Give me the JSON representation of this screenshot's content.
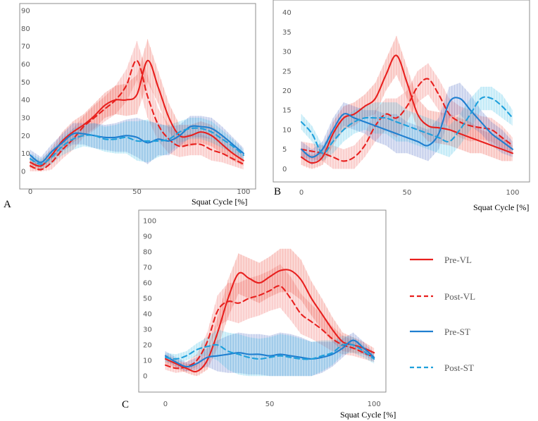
{
  "figure": {
    "x_label": "Squat Cycle [%]",
    "legend": [
      {
        "label": "Pre-VL",
        "color": "#e8201e",
        "dashed": false
      },
      {
        "label": "Post-VL",
        "color": "#e8201e",
        "dashed": true
      },
      {
        "label": "Pre-ST",
        "color": "#1f7fd0",
        "dashed": false
      },
      {
        "label": "Post-ST",
        "color": "#1fa0dc",
        "dashed": true
      }
    ]
  },
  "chart_data": [
    {
      "type": "line",
      "panel": "A",
      "title": "",
      "xlabel": "Squat Cycle [%]",
      "ylabel": "",
      "xlim": [
        -1,
        104
      ],
      "ylim": [
        -2,
        90
      ],
      "x_ticks": [
        0,
        50,
        100
      ],
      "y_ticks": [
        0,
        10,
        20,
        30,
        40,
        50,
        60,
        70,
        80,
        90
      ],
      "x": [
        0,
        5,
        10,
        15,
        20,
        25,
        30,
        35,
        40,
        45,
        50,
        55,
        60,
        65,
        70,
        75,
        80,
        85,
        90,
        95,
        100
      ],
      "series": [
        {
          "name": "Pre-VL",
          "values": [
            5,
            3,
            9,
            17,
            22,
            26,
            31,
            37,
            40,
            40,
            43,
            62,
            47,
            30,
            20,
            20,
            22,
            20,
            15,
            10,
            6
          ]
        },
        {
          "name": "Post-VL",
          "values": [
            3,
            1,
            5,
            12,
            18,
            25,
            30,
            35,
            40,
            48,
            62,
            42,
            26,
            18,
            14,
            15,
            15,
            12,
            10,
            7,
            4
          ]
        },
        {
          "name": "Pre-ST",
          "values": [
            9,
            5,
            11,
            16,
            21,
            21,
            20,
            19,
            19,
            20,
            19,
            16,
            18,
            17,
            20,
            25,
            25,
            24,
            20,
            15,
            10
          ]
        },
        {
          "name": "Post-ST",
          "values": [
            7,
            4,
            8,
            14,
            18,
            20,
            20,
            18,
            18,
            19,
            17,
            17,
            17,
            18,
            22,
            24,
            24,
            22,
            18,
            14,
            9
          ]
        }
      ],
      "spread": [
        3,
        3,
        4,
        5,
        6,
        6,
        7,
        7,
        8,
        9,
        11,
        12,
        9,
        8,
        6,
        6,
        6,
        6,
        5,
        4,
        3
      ]
    },
    {
      "type": "line",
      "panel": "B",
      "title": "",
      "xlabel": "Squat Cycle [%]",
      "ylabel": "",
      "xlim": [
        -1,
        104
      ],
      "ylim": [
        -1,
        41
      ],
      "x_ticks": [
        0,
        50,
        100
      ],
      "y_ticks": [
        0,
        5,
        10,
        15,
        20,
        25,
        30,
        35,
        40
      ],
      "x": [
        0,
        5,
        10,
        15,
        20,
        25,
        30,
        35,
        40,
        45,
        50,
        55,
        60,
        65,
        70,
        75,
        80,
        85,
        90,
        95,
        100
      ],
      "series": [
        {
          "name": "Pre-VL",
          "values": [
            3,
            1.5,
            3,
            9,
            13,
            14,
            16,
            18,
            24,
            29,
            22,
            14,
            11,
            10.5,
            10,
            9,
            8,
            7,
            6,
            5,
            4
          ]
        },
        {
          "name": "Post-VL",
          "values": [
            5,
            4.5,
            4,
            3,
            2,
            3,
            6,
            11,
            14,
            13,
            16,
            21,
            23,
            19,
            14,
            12,
            11,
            10.5,
            10,
            8,
            6
          ]
        },
        {
          "name": "Pre-ST",
          "values": [
            5,
            3,
            5,
            10,
            14,
            13,
            12,
            11,
            10,
            9,
            8,
            7,
            6,
            9,
            17,
            18,
            15,
            12,
            9,
            7,
            5
          ]
        },
        {
          "name": "Post-ST",
          "values": [
            12,
            9,
            4,
            7,
            10,
            12,
            13,
            13,
            13,
            12,
            11,
            10,
            9,
            8,
            7,
            10,
            14,
            18,
            18,
            16,
            13
          ]
        }
      ],
      "spread": [
        2,
        2,
        2,
        3,
        3,
        3,
        3,
        4,
        4,
        5,
        4,
        4,
        4,
        4,
        4,
        4,
        4,
        3,
        3,
        3,
        2
      ]
    },
    {
      "type": "line",
      "panel": "C",
      "title": "",
      "xlabel": "Squat Cycle [%]",
      "ylabel": "",
      "xlim": [
        -1,
        104
      ],
      "ylim": [
        -4,
        101
      ],
      "x_ticks": [
        0,
        50,
        100
      ],
      "y_ticks": [
        0,
        10,
        20,
        30,
        40,
        50,
        60,
        70,
        80,
        90,
        100
      ],
      "x": [
        0,
        5,
        10,
        15,
        20,
        25,
        30,
        35,
        40,
        45,
        50,
        55,
        60,
        65,
        70,
        75,
        80,
        85,
        90,
        95,
        100
      ],
      "series": [
        {
          "name": "Pre-VL",
          "values": [
            11,
            8,
            5,
            3,
            10,
            28,
            50,
            66,
            63,
            60,
            64,
            68,
            68,
            62,
            50,
            40,
            30,
            22,
            20,
            18,
            15
          ]
        },
        {
          "name": "Post-VL",
          "values": [
            7,
            5,
            6,
            10,
            22,
            42,
            48,
            47,
            50,
            52,
            55,
            58,
            50,
            40,
            35,
            30,
            24,
            20,
            18,
            15,
            12
          ]
        },
        {
          "name": "Pre-ST",
          "values": [
            13,
            9,
            6,
            8,
            12,
            13,
            14,
            15,
            14,
            14,
            13,
            14,
            13,
            12,
            11,
            12,
            14,
            18,
            23,
            18,
            12
          ]
        },
        {
          "name": "Post-ST",
          "values": [
            12,
            11,
            13,
            17,
            19,
            20,
            16,
            14,
            12,
            11,
            12,
            13,
            12,
            11,
            11,
            13,
            15,
            20,
            20,
            16,
            11
          ]
        }
      ],
      "spread": [
        3,
        3,
        3,
        4,
        6,
        10,
        12,
        13,
        13,
        13,
        13,
        14,
        14,
        13,
        11,
        10,
        8,
        6,
        5,
        4,
        3
      ]
    }
  ]
}
